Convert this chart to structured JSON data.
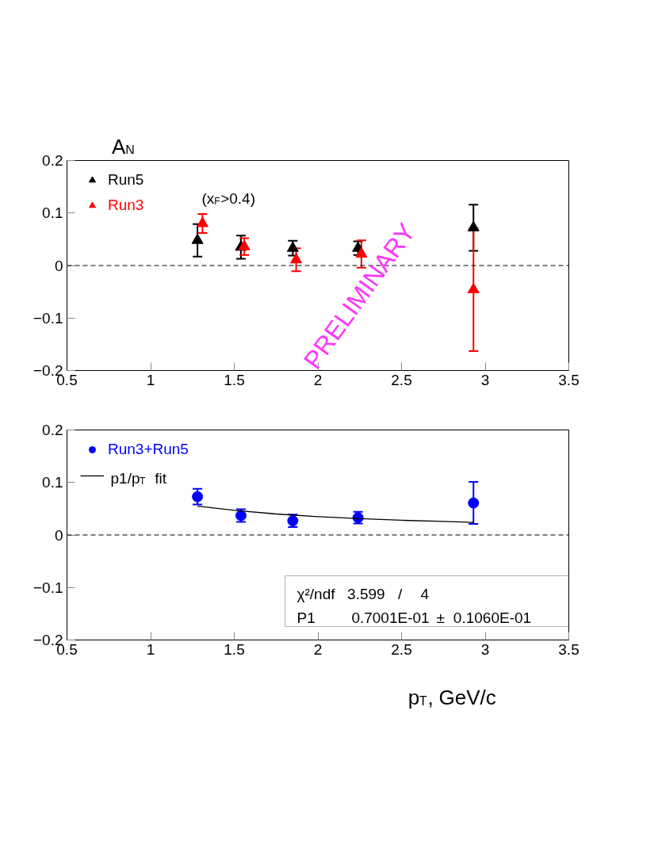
{
  "chart_data": [
    {
      "type": "scatter",
      "ylabel": "A$_{N}$",
      "xlim": [
        0.5,
        3.5
      ],
      "ylim": [
        -0.2,
        0.2
      ],
      "xticks": [
        0.5,
        1,
        1.5,
        2,
        2.5,
        3,
        3.5
      ],
      "yticks": [
        -0.2,
        -0.1,
        0,
        0.1,
        0.2
      ],
      "grid": false,
      "legend": "top left",
      "marker": "triangle",
      "annotations": [
        "(x$_{F}$>0.4)",
        "PRELIMINARY"
      ],
      "ref_lines": [
        {
          "axis": "y",
          "value": 0,
          "color": "#000000",
          "line_style": "dashed"
        }
      ],
      "series": [
        {
          "name": "Run5",
          "color": "#000000",
          "x": [
            1.28,
            1.54,
            1.85,
            2.24,
            2.93
          ],
          "values": [
            0.048,
            0.035,
            0.033,
            0.033,
            0.072
          ],
          "errors": [
            0.031,
            0.022,
            0.014,
            0.013,
            0.044
          ]
        },
        {
          "name": "Run3",
          "color": "#ff0000",
          "x": [
            1.31,
            1.56,
            1.87,
            2.26,
            2.93
          ],
          "values": [
            0.08,
            0.036,
            0.011,
            0.022,
            -0.046
          ],
          "errors": [
            0.018,
            0.016,
            0.022,
            0.026,
            0.117
          ]
        }
      ]
    },
    {
      "type": "scatter",
      "xlabel": "p$_{T}$, GeV/c",
      "xlim": [
        0.5,
        3.5
      ],
      "ylim": [
        -0.2,
        0.2
      ],
      "xticks": [
        0.5,
        1,
        1.5,
        2,
        2.5,
        3,
        3.5
      ],
      "yticks": [
        -0.2,
        -0.1,
        0,
        0.1,
        0.2
      ],
      "grid": false,
      "legend": "top left",
      "marker": "circle",
      "annotations": [
        "χ²/ndf  3.599   /    4",
        "P1        0.7001E-01 ±  0.1060E-01"
      ],
      "ref_lines": [
        {
          "axis": "y",
          "value": 0,
          "color": "#000000",
          "line_style": "dashed"
        }
      ],
      "series": [
        {
          "name": "Run3+Run5",
          "color": "#0000ff",
          "x": [
            1.28,
            1.54,
            1.85,
            2.24,
            2.93
          ],
          "values": [
            0.073,
            0.037,
            0.027,
            0.033,
            0.061
          ],
          "errors": [
            0.015,
            0.012,
            0.012,
            0.011,
            0.04
          ]
        },
        {
          "name": "p1/p$_{T}$  fit",
          "type": "line",
          "marker": "none",
          "line_style": "solid",
          "color": "#000000",
          "x": [
            1.28,
            1.5,
            1.75,
            2.0,
            2.25,
            2.5,
            2.75,
            2.93
          ],
          "values": [
            0.055,
            0.047,
            0.04,
            0.035,
            0.031,
            0.028,
            0.026,
            0.024
          ]
        }
      ]
    }
  ]
}
